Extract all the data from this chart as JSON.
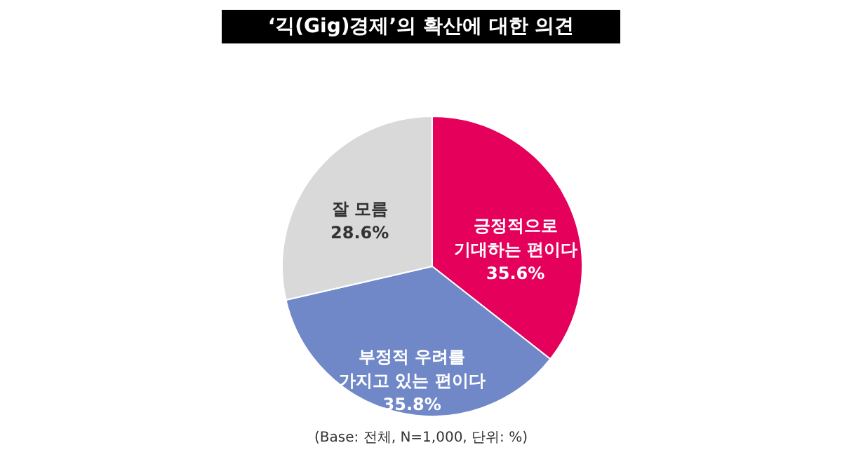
{
  "chart_data": {
    "type": "pie",
    "title": "‘긱(Gig)경제’의 확산에 대한 의견",
    "categories": [
      "긍정적으로\n기대하는 편이다",
      "부정적 우려를\n가지고 있는 편이다",
      "잘 모름"
    ],
    "values": [
      35.6,
      35.8,
      28.6
    ],
    "colors": [
      "#e4005b",
      "#7088c8",
      "#d9d9d9"
    ],
    "value_labels": [
      "35.6%",
      "35.8%",
      "28.6%"
    ],
    "annotations": [
      "(Base: 전체, N=1,000, 단위: %)"
    ]
  }
}
